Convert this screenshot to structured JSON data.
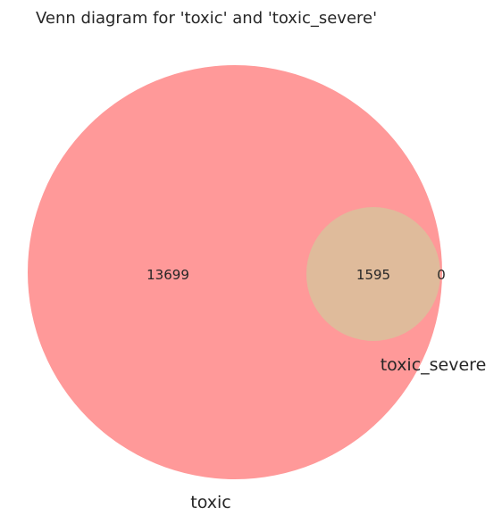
{
  "title": "Venn diagram for 'toxic' and 'toxic_severe'",
  "sets": {
    "a": {
      "label": "toxic",
      "color": "#ff9999"
    },
    "b": {
      "label": "toxic_severe",
      "color": "#dfbb9b"
    }
  },
  "regions": {
    "a_only": "13699",
    "a_and_b": "1595",
    "b_only": "0"
  }
}
